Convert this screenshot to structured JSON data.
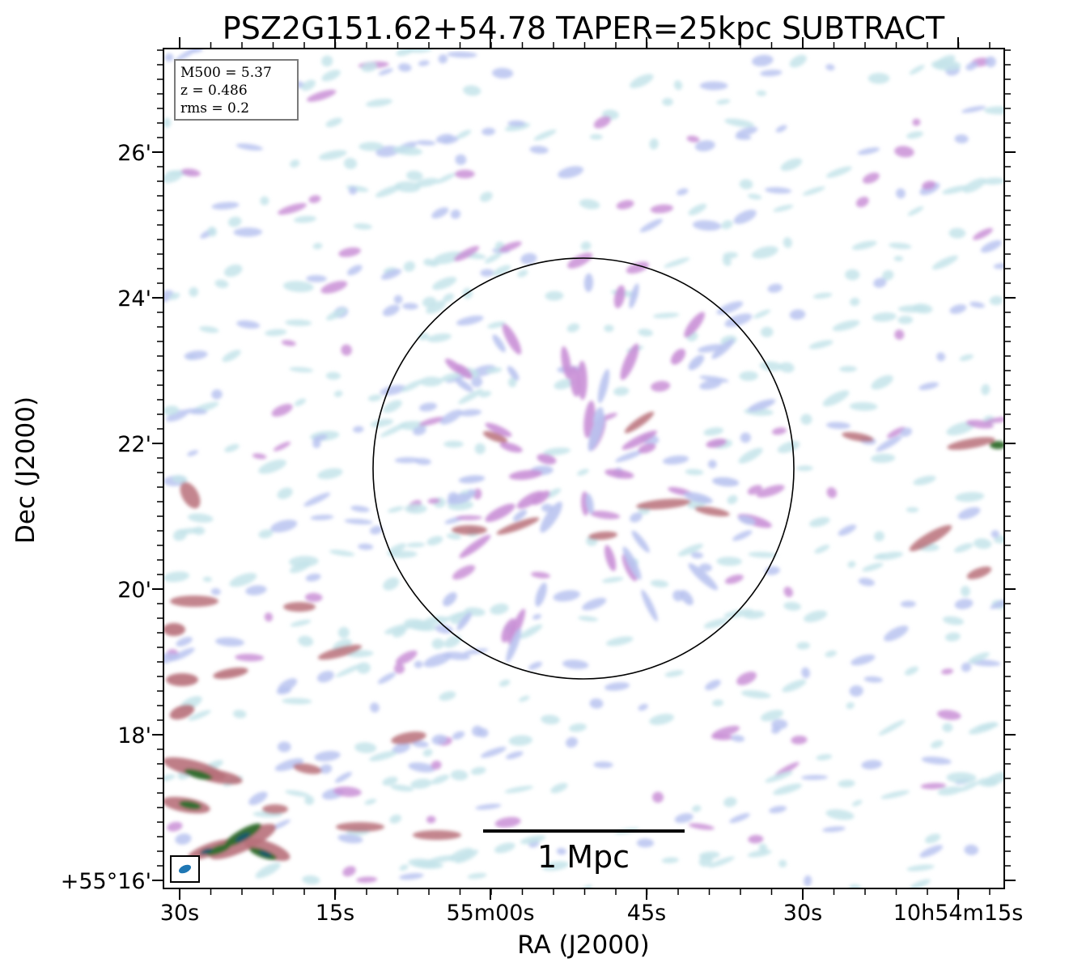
{
  "title": "PSZ2G151.62+54.78 TAPER=25kpc SUBTRACT",
  "info_box": {
    "lines": [
      "M500 = 5.37",
      "z = 0.486",
      "rms = 0.2"
    ]
  },
  "axes": {
    "xlabel": "RA (J2000)",
    "ylabel": "Dec (J2000)",
    "x_tick_labels": [
      "30s",
      "15s",
      "55m00s",
      "45s",
      "30s",
      "10h54m15s"
    ],
    "y_tick_labels": [
      "26'",
      "24'",
      "22'",
      "20'",
      "18'",
      "+55°16'"
    ]
  },
  "scale_bar": {
    "label": "1 Mpc"
  },
  "colors": {
    "faint_emission": "#c4e4ea",
    "low_emission": "#b9c3f0",
    "mid_emission": "#c98fd6",
    "high_emission": "#b8707a",
    "peak_emission": "#2f6e2c",
    "core_emission": "#145a6a",
    "beam": "#1f77b4",
    "circle": "#000000"
  },
  "beam_icon": "beam-ellipse-icon"
}
